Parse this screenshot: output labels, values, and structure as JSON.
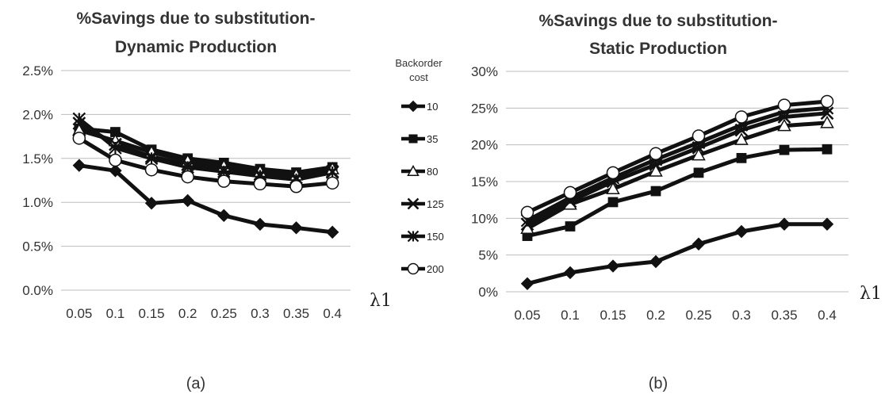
{
  "legend": {
    "title_line1": "Backorder",
    "title_line2": "cost"
  },
  "chart_data": [
    {
      "type": "line",
      "title_line1": "%Savings due to substitution-",
      "title_line2": "Dynamic Production",
      "caption": "(a)",
      "xlabel": "λ1",
      "categories": [
        "0.05",
        "0.1",
        "0.15",
        "0.2",
        "0.25",
        "0.3",
        "0.35",
        "0.4"
      ],
      "ylim": [
        0,
        2.5
      ],
      "yticks": [
        "0.0%",
        "0.5%",
        "1.0%",
        "1.5%",
        "2.0%",
        "2.5%"
      ],
      "grid": true,
      "legend_position": "right",
      "series": [
        {
          "name": "10",
          "marker": "diamond",
          "values": [
            1.42,
            1.36,
            0.99,
            1.02,
            0.85,
            0.75,
            0.71,
            0.66
          ]
        },
        {
          "name": "35",
          "marker": "square",
          "values": [
            1.84,
            1.8,
            1.6,
            1.5,
            1.45,
            1.38,
            1.34,
            1.4
          ]
        },
        {
          "name": "80",
          "marker": "triangle",
          "values": [
            1.82,
            1.7,
            1.57,
            1.47,
            1.41,
            1.35,
            1.31,
            1.38
          ]
        },
        {
          "name": "125",
          "marker": "x",
          "values": [
            1.9,
            1.66,
            1.52,
            1.43,
            1.38,
            1.32,
            1.28,
            1.35
          ]
        },
        {
          "name": "150",
          "marker": "asterisk",
          "values": [
            1.95,
            1.62,
            1.5,
            1.4,
            1.35,
            1.3,
            1.26,
            1.34
          ]
        },
        {
          "name": "200",
          "marker": "circle",
          "values": [
            1.73,
            1.48,
            1.37,
            1.29,
            1.24,
            1.21,
            1.18,
            1.22
          ]
        }
      ]
    },
    {
      "type": "line",
      "title_line1": "%Savings due to substitution-",
      "title_line2": "Static Production",
      "caption": "(b)",
      "xlabel": "λ1",
      "categories": [
        "0.05",
        "0.1",
        "0.15",
        "0.2",
        "0.25",
        "0.3",
        "0.35",
        "0.4"
      ],
      "ylim": [
        0,
        30
      ],
      "yticks": [
        "0%",
        "5%",
        "10%",
        "15%",
        "20%",
        "25%",
        "30%"
      ],
      "grid": true,
      "series": [
        {
          "name": "10",
          "marker": "diamond",
          "values": [
            1.1,
            2.6,
            3.5,
            4.1,
            6.5,
            8.2,
            9.2,
            9.2
          ]
        },
        {
          "name": "35",
          "marker": "square",
          "values": [
            7.6,
            8.9,
            12.2,
            13.7,
            16.2,
            18.2,
            19.3,
            19.4
          ]
        },
        {
          "name": "80",
          "marker": "triangle",
          "values": [
            8.6,
            11.9,
            14.0,
            16.4,
            18.6,
            20.7,
            22.6,
            23.0
          ]
        },
        {
          "name": "125",
          "marker": "x",
          "values": [
            9.2,
            12.3,
            15.0,
            17.3,
            19.6,
            22.0,
            23.8,
            24.3
          ]
        },
        {
          "name": "150",
          "marker": "asterisk",
          "values": [
            9.7,
            12.8,
            15.5,
            18.0,
            20.3,
            22.7,
            24.5,
            25.0
          ]
        },
        {
          "name": "200",
          "marker": "circle",
          "values": [
            10.8,
            13.5,
            16.2,
            18.8,
            21.2,
            23.8,
            25.4,
            25.9
          ]
        }
      ]
    }
  ]
}
